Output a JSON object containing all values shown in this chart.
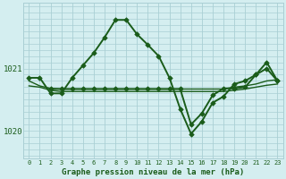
{
  "background_color": "#d4eef0",
  "grid_color": "#aacfd4",
  "line_color": "#1a5c1a",
  "xlim": [
    -0.5,
    23.5
  ],
  "ylim": [
    1019.55,
    1022.05
  ],
  "yticks": [
    1020,
    1021
  ],
  "xticks": [
    0,
    1,
    2,
    3,
    4,
    5,
    6,
    7,
    8,
    9,
    10,
    11,
    12,
    13,
    14,
    15,
    16,
    17,
    18,
    19,
    20,
    21,
    22,
    23
  ],
  "xlabel": "Graphe pression niveau de la mer (hPa)",
  "series": [
    {
      "x": [
        0,
        1,
        2,
        3,
        4,
        5,
        6,
        7,
        8,
        9,
        10,
        11,
        12,
        13,
        14,
        15,
        16,
        17,
        18,
        19,
        20,
        21,
        22,
        23
      ],
      "y": [
        1020.85,
        1020.85,
        1020.6,
        1020.6,
        1020.85,
        1021.05,
        1021.25,
        1021.5,
        1021.78,
        1021.78,
        1021.55,
        1021.38,
        1021.2,
        1020.85,
        1020.35,
        1019.95,
        1020.15,
        1020.45,
        1020.55,
        1020.75,
        1020.8,
        1020.9,
        1021.1,
        1020.8
      ],
      "linewidth": 1.4,
      "marker": "D",
      "markersize": 2.8
    },
    {
      "x": [
        0,
        1,
        2,
        3,
        4,
        5,
        6,
        7,
        8,
        9,
        10,
        11,
        12,
        13,
        14,
        15,
        16,
        17,
        18,
        19,
        20,
        21,
        22,
        23
      ],
      "y": [
        1020.8,
        1020.72,
        1020.68,
        1020.67,
        1020.67,
        1020.67,
        1020.67,
        1020.67,
        1020.67,
        1020.67,
        1020.67,
        1020.67,
        1020.67,
        1020.67,
        1020.67,
        1020.67,
        1020.67,
        1020.67,
        1020.67,
        1020.7,
        1020.72,
        1020.75,
        1020.8,
        1020.82
      ],
      "linewidth": 1.0,
      "marker": null,
      "markersize": 0
    },
    {
      "x": [
        0,
        1,
        2,
        3,
        4,
        5,
        6,
        7,
        8,
        9,
        10,
        11,
        12,
        13,
        14,
        15,
        16,
        17,
        18,
        19,
        20,
        21,
        22,
        23
      ],
      "y": [
        1020.72,
        1020.7,
        1020.65,
        1020.63,
        1020.63,
        1020.63,
        1020.63,
        1020.63,
        1020.63,
        1020.63,
        1020.63,
        1020.63,
        1020.63,
        1020.63,
        1020.63,
        1020.63,
        1020.63,
        1020.63,
        1020.63,
        1020.65,
        1020.67,
        1020.7,
        1020.73,
        1020.75
      ],
      "linewidth": 1.0,
      "marker": null,
      "markersize": 0
    },
    {
      "x": [
        2,
        3,
        4,
        5,
        6,
        7,
        8,
        9,
        10,
        11,
        12,
        13,
        14,
        15,
        16,
        17,
        18,
        19,
        20,
        21,
        22,
        23
      ],
      "y": [
        1020.67,
        1020.67,
        1020.67,
        1020.67,
        1020.67,
        1020.67,
        1020.67,
        1020.67,
        1020.67,
        1020.67,
        1020.67,
        1020.67,
        1020.67,
        1020.1,
        1020.28,
        1020.57,
        1020.68,
        1020.68,
        1020.7,
        1020.9,
        1021.0,
        1020.8
      ],
      "linewidth": 1.4,
      "marker": "D",
      "markersize": 2.8
    }
  ]
}
